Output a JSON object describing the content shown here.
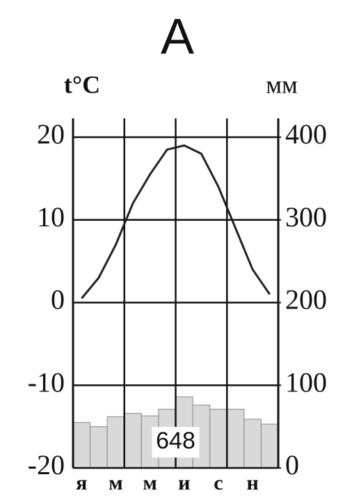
{
  "chart_data": {
    "type": "combo",
    "title": "А",
    "ylabel": "t°C",
    "y2label": "мм",
    "categories": [
      "я",
      null,
      "м",
      null,
      "м",
      null,
      "и",
      null,
      "с",
      null,
      "н",
      null
    ],
    "series": [
      {
        "type": "bar",
        "axis": "y2",
        "color": "#d9d9d9",
        "values": [
          55,
          50,
          62,
          66,
          63,
          71,
          86,
          76,
          71,
          71,
          59,
          53
        ]
      },
      {
        "type": "line",
        "color": "#222222",
        "values": [
          0.5,
          3,
          7,
          12,
          15.5,
          18.5,
          19,
          18,
          14,
          9,
          4,
          1
        ]
      }
    ],
    "annotation": "648",
    "ylim": [
      -20,
      20
    ],
    "yticks": [
      20,
      10,
      0,
      -10,
      -20
    ],
    "y2lim": [
      0,
      400
    ],
    "y2ticks": [
      0,
      100,
      200,
      300,
      400
    ],
    "grid": true
  }
}
